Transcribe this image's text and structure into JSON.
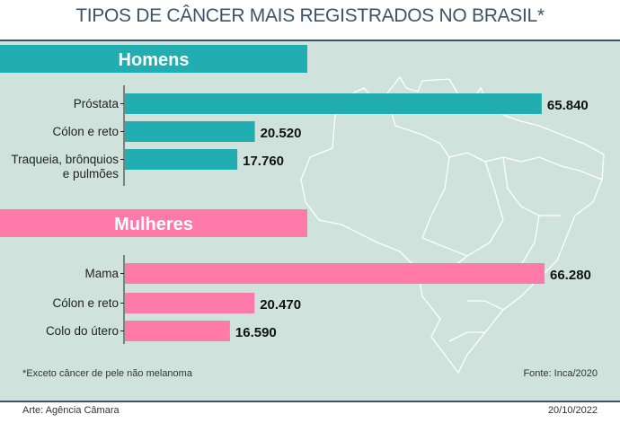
{
  "title": "TIPOS DE CÂNCER MAIS REGISTRADOS NO BRASIL*",
  "footnote": "*Exceto câncer de pele não melanoma",
  "source": "Fonte: Inca/2020",
  "credit": "Arte: Agência Câmara",
  "date": "20/10/2022",
  "colors": {
    "homens": "#22adb0",
    "mulheres": "#ff7aa8",
    "background": "#cfe3dc",
    "title": "#3d5468"
  },
  "chart_data": {
    "type": "bar",
    "orientation": "horizontal",
    "title": "TIPOS DE CÂNCER MAIS REGISTRADOS NO BRASIL*",
    "xlim": [
      0,
      66280
    ],
    "groups": [
      {
        "name": "Homens",
        "categories": [
          [
            "Próstata"
          ],
          [
            "Cólon e reto"
          ],
          [
            "Traqueia, brônquios",
            "e pulmões"
          ]
        ],
        "values": [
          65840,
          20520,
          17760
        ],
        "labels": [
          "65.840",
          "20.520",
          "17.760"
        ]
      },
      {
        "name": "Mulheres",
        "categories": [
          [
            "Mama"
          ],
          [
            "Cólon e reto"
          ],
          [
            "Colo do útero"
          ]
        ],
        "values": [
          66280,
          20470,
          16590
        ],
        "labels": [
          "66.280",
          "20.470",
          "16.590"
        ]
      }
    ]
  }
}
